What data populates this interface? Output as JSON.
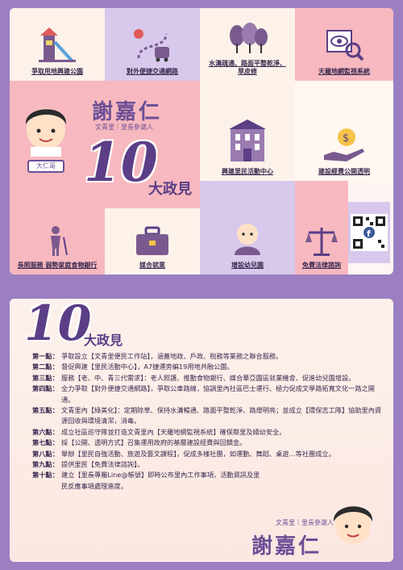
{
  "top": {
    "tiles": [
      {
        "label": "爭取用地興建公園",
        "icon": "playground-icon"
      },
      {
        "label": "對外便捷交通網路",
        "icon": "route-icon"
      },
      {
        "label": "水溝疏通、路面平整乾淨、草皮修",
        "icon": "trees-icon"
      },
      {
        "label": "天羅地網監視系統",
        "icon": "surveillance-icon"
      },
      {
        "label": "興建里民活動中心",
        "icon": "building-icon"
      },
      {
        "label": "建設經費公開透明",
        "icon": "money-hand-icon"
      },
      {
        "label": "長照服務 弱勢家庭食物銀行",
        "icon": "elder-icon"
      },
      {
        "label": "媒合就業",
        "icon": "briefcase-icon"
      },
      {
        "label": "增設幼兒園",
        "icon": "baby-icon"
      },
      {
        "label": "免費法律諮詢",
        "icon": "scales-icon"
      }
    ],
    "candidate_name": "謝嘉仁",
    "candidate_sub": "文青里｜里長參選人",
    "badge": "大仁哥",
    "big_number": "10",
    "policy_heading": "大政見"
  },
  "bottom": {
    "big_number": "10",
    "heading": "大政見",
    "points": [
      {
        "k": "第一點：",
        "v": "爭取設立【文青里便民工作站】，涵蓋地政、戶政、稅務等業務之聯合服務。"
      },
      {
        "k": "第二點：",
        "v": "督促興建【里民活動中心】，A7捷運旁編19用地共融公園。"
      },
      {
        "k": "第三點：",
        "v": "服務【老、中、青三代需求】：老人照護、推動食物銀行、媒合華亞園區就業機會、促進幼兒園增設。"
      },
      {
        "k": "第四點：",
        "v": "全力爭取【對外便捷交通網路】，爭取公車路線，協調里內社區巴士運行、極力促成文學路拓寬文化一路之開通。"
      },
      {
        "k": "第五點：",
        "v": "文青里內【綠美化】：定期除草、保持水溝暢通、路面平整乾淨、路燈明亮；並成立【環保志工隊】協助里內資源回收與環境清潔，消毒。"
      },
      {
        "k": "第六點：",
        "v": "成立社區巡守隊並打造文青里內【天羅地網監視系統】確保鄰里及婦幼安全。"
      },
      {
        "k": "第七點：",
        "v": "採【公開、透明方式】召集運用政府的基層建設經費與回饋金。"
      },
      {
        "k": "第八點：",
        "v": "舉辦【里民自強活動、旅遊及藝文課程】，促成多樣社團，如運動、舞蹈、桌遊…等社團成立。"
      },
      {
        "k": "第九點：",
        "v": "提供里民【免費法律諮詢】。"
      },
      {
        "k": "第十點：",
        "v": "建立【里長專屬Line@帳號】即時公布里內工作事項，活動資訊及里民反應事項處理進度。"
      }
    ],
    "candidate_sub": "文青里｜里長參選人",
    "candidate_name": "謝嘉仁"
  },
  "colors": {
    "purple": "#9b7fc2",
    "pink": "#f7b8bf",
    "lavender": "#d8c9ec",
    "accent": "#5b3e86"
  }
}
